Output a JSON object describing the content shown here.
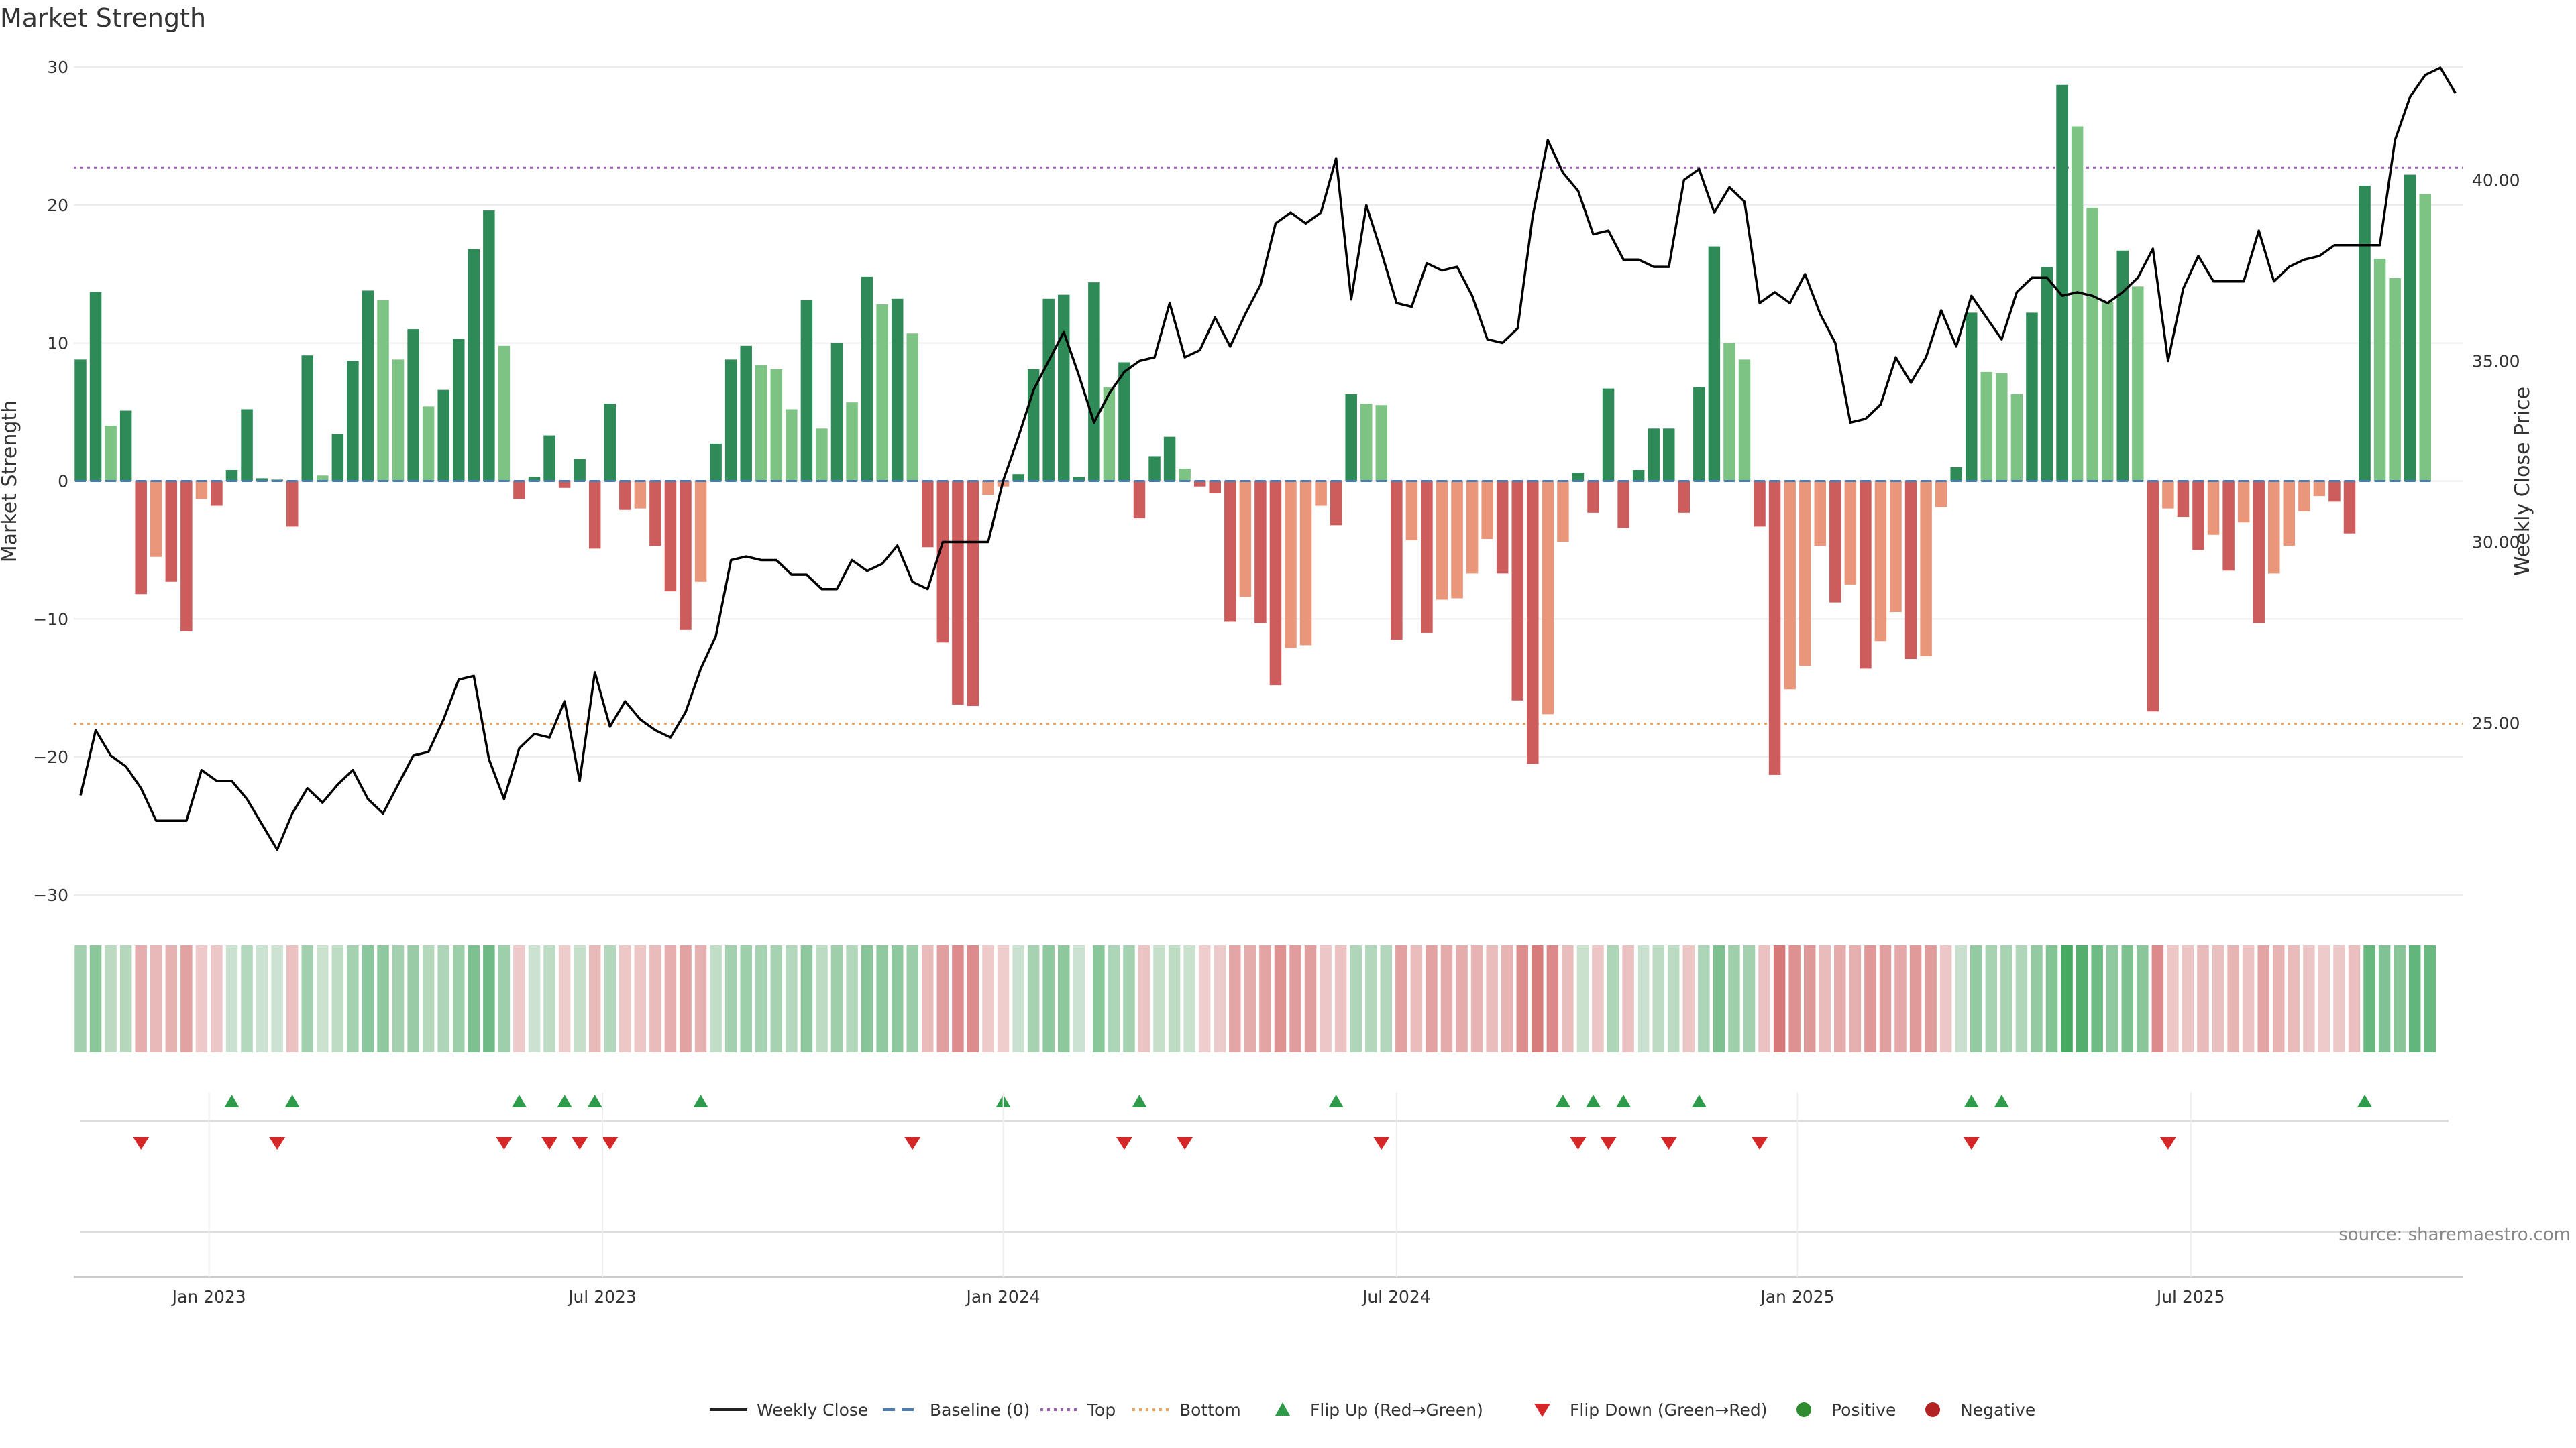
{
  "chart_data": {
    "type": "bar",
    "title": "Market Strength",
    "ylabel": "Market Strength",
    "y2label": "Weekly Close Price",
    "ylim": [
      -30,
      30
    ],
    "y2lim": [
      20.25,
      43.12
    ],
    "yticks": [
      -30,
      -20,
      -10,
      0,
      10,
      20,
      30
    ],
    "y2ticks": [
      "25.00",
      "30.00",
      "35.00",
      "40.00"
    ],
    "x_ticks": [
      {
        "label": "Jan 2023",
        "week": 8.5
      },
      {
        "label": "Jul 2023",
        "week": 34.5
      },
      {
        "label": "Jan 2024",
        "week": 61
      },
      {
        "label": "Jul 2024",
        "week": 87
      },
      {
        "label": "Jan 2025",
        "week": 113.5
      },
      {
        "label": "Jul 2025",
        "week": 139.5
      }
    ],
    "first_week": "2022-11-14",
    "top_level": 22.7,
    "bottom_level": -17.6,
    "source": "source: sharemaestro.com",
    "colors": {
      "strong_positive": "#2e8b57",
      "weak_positive": "#7dc383",
      "strong_negative": "#cd5c5c",
      "weak_negative": "#e9967a",
      "price_line": "#000000",
      "top_line": "#9b59b6",
      "bottom_line": "#f0a35e",
      "baseline": "#4a7eb5",
      "flip_up": "#2e9b4a",
      "flip_down": "#d62728",
      "positive_dot": "#2e8b2e",
      "negative_dot": "#b22222"
    },
    "strength": [
      [
        8.8,
        "s"
      ],
      [
        13.7,
        "s"
      ],
      [
        4.0,
        "w"
      ],
      [
        5.1,
        "s"
      ],
      [
        -8.2,
        "s"
      ],
      [
        -5.5,
        "w"
      ],
      [
        -7.3,
        "s"
      ],
      [
        -10.9,
        "s"
      ],
      [
        -1.3,
        "w"
      ],
      [
        -1.8,
        "s"
      ],
      [
        0.8,
        "s"
      ],
      [
        5.2,
        "s"
      ],
      [
        0.2,
        "s"
      ],
      [
        0.1,
        "s"
      ],
      [
        -3.3,
        "s"
      ],
      [
        9.1,
        "s"
      ],
      [
        0.4,
        "w"
      ],
      [
        3.4,
        "s"
      ],
      [
        8.7,
        "s"
      ],
      [
        13.8,
        "s"
      ],
      [
        13.1,
        "w"
      ],
      [
        8.8,
        "w"
      ],
      [
        11.0,
        "s"
      ],
      [
        5.4,
        "w"
      ],
      [
        6.6,
        "s"
      ],
      [
        10.3,
        "s"
      ],
      [
        16.8,
        "s"
      ],
      [
        19.6,
        "s"
      ],
      [
        9.8,
        "w"
      ],
      [
        -1.3,
        "s"
      ],
      [
        0.3,
        "s"
      ],
      [
        3.3,
        "s"
      ],
      [
        -0.5,
        "s"
      ],
      [
        1.6,
        "s"
      ],
      [
        -4.9,
        "s"
      ],
      [
        5.6,
        "s"
      ],
      [
        -2.1,
        "s"
      ],
      [
        -2.0,
        "w"
      ],
      [
        -4.7,
        "s"
      ],
      [
        -8.0,
        "s"
      ],
      [
        -10.8,
        "s"
      ],
      [
        -7.3,
        "w"
      ],
      [
        2.7,
        "s"
      ],
      [
        8.8,
        "s"
      ],
      [
        9.8,
        "s"
      ],
      [
        8.4,
        "w"
      ],
      [
        8.1,
        "w"
      ],
      [
        5.2,
        "w"
      ],
      [
        13.1,
        "s"
      ],
      [
        3.8,
        "w"
      ],
      [
        10.0,
        "s"
      ],
      [
        5.7,
        "w"
      ],
      [
        14.8,
        "s"
      ],
      [
        12.8,
        "w"
      ],
      [
        13.2,
        "s"
      ],
      [
        10.7,
        "w"
      ],
      [
        -4.8,
        "s"
      ],
      [
        -11.7,
        "s"
      ],
      [
        -16.2,
        "s"
      ],
      [
        -16.3,
        "s"
      ],
      [
        -1.0,
        "w"
      ],
      [
        -0.4,
        "w"
      ],
      [
        0.5,
        "s"
      ],
      [
        8.1,
        "s"
      ],
      [
        13.2,
        "s"
      ],
      [
        13.5,
        "s"
      ],
      [
        0.3,
        "s"
      ],
      [
        14.4,
        "s"
      ],
      [
        6.8,
        "w"
      ],
      [
        8.6,
        "s"
      ],
      [
        -2.7,
        "s"
      ],
      [
        1.8,
        "s"
      ],
      [
        3.2,
        "s"
      ],
      [
        0.9,
        "w"
      ],
      [
        -0.4,
        "s"
      ],
      [
        -0.9,
        "s"
      ],
      [
        -10.2,
        "s"
      ],
      [
        -8.4,
        "w"
      ],
      [
        -10.3,
        "s"
      ],
      [
        -14.8,
        "s"
      ],
      [
        -12.1,
        "w"
      ],
      [
        -11.9,
        "w"
      ],
      [
        -1.8,
        "w"
      ],
      [
        -3.2,
        "s"
      ],
      [
        6.3,
        "s"
      ],
      [
        5.6,
        "w"
      ],
      [
        5.5,
        "w"
      ],
      [
        -11.5,
        "s"
      ],
      [
        -4.3,
        "w"
      ],
      [
        -11.0,
        "s"
      ],
      [
        -8.6,
        "w"
      ],
      [
        -8.5,
        "w"
      ],
      [
        -6.7,
        "w"
      ],
      [
        -4.2,
        "w"
      ],
      [
        -6.7,
        "s"
      ],
      [
        -15.9,
        "s"
      ],
      [
        -20.5,
        "s"
      ],
      [
        -16.9,
        "w"
      ],
      [
        -4.4,
        "w"
      ],
      [
        0.6,
        "s"
      ],
      [
        -2.3,
        "s"
      ],
      [
        6.7,
        "s"
      ],
      [
        -3.4,
        "s"
      ],
      [
        0.8,
        "s"
      ],
      [
        3.8,
        "s"
      ],
      [
        3.8,
        "s"
      ],
      [
        -2.3,
        "s"
      ],
      [
        6.8,
        "s"
      ],
      [
        17.0,
        "s"
      ],
      [
        10.0,
        "w"
      ],
      [
        8.8,
        "w"
      ],
      [
        -3.3,
        "s"
      ],
      [
        -21.3,
        "s"
      ],
      [
        -15.1,
        "w"
      ],
      [
        -13.4,
        "w"
      ],
      [
        -4.7,
        "w"
      ],
      [
        -8.8,
        "s"
      ],
      [
        -7.5,
        "w"
      ],
      [
        -13.6,
        "s"
      ],
      [
        -11.6,
        "w"
      ],
      [
        -9.5,
        "w"
      ],
      [
        -12.9,
        "s"
      ],
      [
        -12.7,
        "w"
      ],
      [
        -1.9,
        "w"
      ],
      [
        1.0,
        "s"
      ],
      [
        12.2,
        "s"
      ],
      [
        7.9,
        "w"
      ],
      [
        7.8,
        "w"
      ],
      [
        6.3,
        "w"
      ],
      [
        12.2,
        "s"
      ],
      [
        15.5,
        "s"
      ],
      [
        28.7,
        "s"
      ],
      [
        25.7,
        "w"
      ],
      [
        19.8,
        "w"
      ],
      [
        13.0,
        "w"
      ],
      [
        16.7,
        "s"
      ],
      [
        14.1,
        "w"
      ],
      [
        -16.7,
        "s"
      ],
      [
        -2.0,
        "w"
      ],
      [
        -2.6,
        "s"
      ],
      [
        -5.0,
        "s"
      ],
      [
        -3.9,
        "w"
      ],
      [
        -6.5,
        "s"
      ],
      [
        -3.0,
        "w"
      ],
      [
        -10.3,
        "s"
      ],
      [
        -6.7,
        "w"
      ],
      [
        -4.7,
        "w"
      ],
      [
        -2.2,
        "w"
      ],
      [
        -1.1,
        "w"
      ],
      [
        -1.5,
        "s"
      ],
      [
        -3.8,
        "s"
      ],
      [
        21.4,
        "s"
      ],
      [
        16.1,
        "w"
      ],
      [
        14.7,
        "w"
      ],
      [
        22.2,
        "s"
      ],
      [
        20.8,
        "w"
      ]
    ],
    "price": [
      23.0,
      24.8,
      24.1,
      23.8,
      23.2,
      22.3,
      22.3,
      22.3,
      23.7,
      23.4,
      23.4,
      22.9,
      22.2,
      21.5,
      22.5,
      23.2,
      22.8,
      23.3,
      23.7,
      22.9,
      22.5,
      23.3,
      24.1,
      24.2,
      25.1,
      26.2,
      26.3,
      24.0,
      22.9,
      24.3,
      24.7,
      24.6,
      25.6,
      23.4,
      26.4,
      24.9,
      25.6,
      25.1,
      24.8,
      24.6,
      25.3,
      26.5,
      27.4,
      29.5,
      29.6,
      29.5,
      29.5,
      29.1,
      29.1,
      28.7,
      28.7,
      29.5,
      29.2,
      29.4,
      29.9,
      28.9,
      28.7,
      30.0,
      30.0,
      30.0,
      30.0,
      31.7,
      32.9,
      34.2,
      35.0,
      35.8,
      34.6,
      33.3,
      34.1,
      34.7,
      35.0,
      35.1,
      36.6,
      35.1,
      35.3,
      36.2,
      35.4,
      36.3,
      37.1,
      38.8,
      39.1,
      38.8,
      39.1,
      40.6,
      36.7,
      39.3,
      38.0,
      36.6,
      36.5,
      37.7,
      37.5,
      37.6,
      36.8,
      35.6,
      35.5,
      35.9,
      39.0,
      41.1,
      40.2,
      39.7,
      38.5,
      38.6,
      37.8,
      37.8,
      37.6,
      37.6,
      40.0,
      40.3,
      39.1,
      39.8,
      39.4,
      36.6,
      36.9,
      36.6,
      37.4,
      36.3,
      35.5,
      33.3,
      33.4,
      33.8,
      35.1,
      34.4,
      35.1,
      36.4,
      35.4,
      36.8,
      36.2,
      35.6,
      36.9,
      37.3,
      37.3,
      36.8,
      36.9,
      36.8,
      36.6,
      36.9,
      37.3,
      38.1,
      35.0,
      37.0,
      37.9,
      37.2,
      37.2,
      37.2,
      38.6,
      37.2,
      37.6,
      37.8,
      37.9,
      38.2,
      38.2,
      38.2,
      38.2,
      41.1,
      42.3,
      42.9,
      43.1,
      42.4
    ],
    "heat_gap_after_week": 66,
    "flip_up_weeks": [
      10,
      14,
      29,
      32,
      34,
      41,
      61,
      70,
      83,
      98,
      100,
      102,
      107,
      125,
      127,
      151
    ],
    "flip_down_weeks": [
      4,
      13,
      28,
      31,
      33,
      35,
      55,
      69,
      73,
      86,
      99,
      101,
      105,
      111,
      125,
      138
    ],
    "legend": [
      {
        "label": "Weekly Close",
        "kind": "line-solid",
        "color": "#222222"
      },
      {
        "label": "Baseline (0)",
        "kind": "line-dash",
        "color": "#4a7eb5"
      },
      {
        "label": "Top",
        "kind": "line-dot",
        "color": "#9b59b6"
      },
      {
        "label": "Bottom",
        "kind": "line-dot",
        "color": "#f0a35e"
      },
      {
        "label": "Flip Up (Red→Green)",
        "kind": "tri-up",
        "color": "#2e9b4a"
      },
      {
        "label": "Flip Down (Green→Red)",
        "kind": "tri-down",
        "color": "#d62728"
      },
      {
        "label": "Positive",
        "kind": "dot",
        "color": "#2e8b2e"
      },
      {
        "label": "Negative",
        "kind": "dot",
        "color": "#b22222"
      }
    ]
  }
}
